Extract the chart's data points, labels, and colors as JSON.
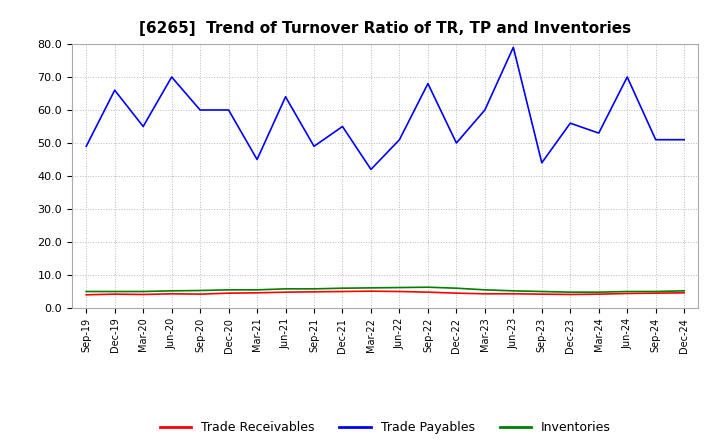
{
  "title": "[6265]  Trend of Turnover Ratio of TR, TP and Inventories",
  "xlabels": [
    "Sep-19",
    "Dec-19",
    "Mar-20",
    "Jun-20",
    "Sep-20",
    "Dec-20",
    "Mar-21",
    "Jun-21",
    "Sep-21",
    "Dec-21",
    "Mar-22",
    "Jun-22",
    "Sep-22",
    "Dec-22",
    "Mar-23",
    "Jun-23",
    "Sep-23",
    "Dec-23",
    "Mar-24",
    "Jun-24",
    "Sep-24",
    "Dec-24"
  ],
  "trade_receivables": [
    4.0,
    4.2,
    4.1,
    4.3,
    4.2,
    4.5,
    4.6,
    4.8,
    4.9,
    5.0,
    5.1,
    5.0,
    4.8,
    4.5,
    4.3,
    4.3,
    4.2,
    4.1,
    4.2,
    4.4,
    4.5,
    4.6
  ],
  "trade_payables": [
    49.0,
    66.0,
    55.0,
    70.0,
    60.0,
    60.0,
    45.0,
    64.0,
    49.0,
    55.0,
    42.0,
    51.0,
    68.0,
    50.0,
    60.0,
    79.0,
    44.0,
    56.0,
    53.0,
    70.0,
    51.0,
    51.0
  ],
  "inventories": [
    5.0,
    5.0,
    5.0,
    5.2,
    5.3,
    5.5,
    5.5,
    5.8,
    5.8,
    6.0,
    6.1,
    6.2,
    6.3,
    6.0,
    5.5,
    5.2,
    5.0,
    4.8,
    4.8,
    5.0,
    5.0,
    5.2
  ],
  "tr_color": "#ff0000",
  "tp_color": "#0000ff",
  "inv_color": "#008000",
  "ylim": [
    0.0,
    80.0
  ],
  "yticks": [
    0.0,
    10.0,
    20.0,
    30.0,
    40.0,
    50.0,
    60.0,
    70.0,
    80.0
  ],
  "bg_color": "#ffffff",
  "plot_bg_color": "#ffffff",
  "grid_color": "#bbbbbb",
  "legend_labels": [
    "Trade Receivables",
    "Trade Payables",
    "Inventories"
  ]
}
